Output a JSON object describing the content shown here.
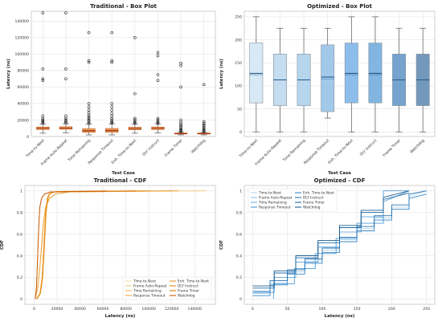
{
  "chart_data": [
    {
      "type": "box",
      "title": "Traditional - Box Plot",
      "xlabel": "Test Case",
      "ylabel": "Latency (ns)",
      "ylim": [
        0,
        152000
      ],
      "yticks": [
        0,
        20000,
        40000,
        60000,
        80000,
        100000,
        120000,
        140000
      ],
      "grid": true,
      "categories": [
        "Time-to-Next",
        "Frame Auto-Repeat",
        "Time Remaining",
        "Response Timeout",
        "Enh. Time-to-Next",
        "DLY Instruct",
        "Frame Timer",
        "Watchdog"
      ],
      "boxes": [
        {
          "whisker_low": 4000,
          "q1": 8500,
          "median": 10000,
          "mean": 10000,
          "q3": 11500,
          "whisker_high": 15000,
          "outliers": [
            150000,
            82000,
            70000,
            68000,
            25000,
            22000,
            20000,
            19000,
            18000,
            17000,
            16500
          ]
        },
        {
          "whisker_low": 4500,
          "q1": 8800,
          "median": 10200,
          "mean": 10200,
          "q3": 11800,
          "whisker_high": 15500,
          "outliers": [
            150000,
            82000,
            70000,
            25000,
            22000,
            20000,
            18500,
            17000,
            16500
          ]
        },
        {
          "whisker_low": 2000,
          "q1": 5000,
          "median": 6800,
          "mean": 7500,
          "q3": 9500,
          "whisker_high": 15000,
          "outliers": [
            126000,
            92000,
            90000,
            40000,
            36000,
            32000,
            29000,
            26000,
            24000,
            22000,
            20000,
            18500,
            17000,
            16000
          ]
        },
        {
          "whisker_low": 2000,
          "q1": 5200,
          "median": 7000,
          "mean": 7800,
          "q3": 9800,
          "whisker_high": 15500,
          "outliers": [
            126000,
            92000,
            90000,
            40000,
            36000,
            32000,
            28000,
            25000,
            22000,
            20000,
            18000,
            17000,
            16200
          ]
        },
        {
          "whisker_low": 4000,
          "q1": 8200,
          "median": 9800,
          "mean": 9800,
          "q3": 11200,
          "whisker_high": 15000,
          "outliers": [
            120000,
            52000,
            22000,
            20000,
            18000,
            17000,
            16000
          ]
        },
        {
          "whisker_low": 4500,
          "q1": 8500,
          "median": 10000,
          "mean": 10000,
          "q3": 11500,
          "whisker_high": 15500,
          "outliers": [
            102000,
            98000,
            75000,
            68000,
            22000,
            20000,
            18000,
            17000,
            16000
          ]
        },
        {
          "whisker_low": 2000,
          "q1": 3000,
          "median": 3500,
          "mean": 3600,
          "q3": 4200,
          "whisker_high": 5500,
          "outliers": [
            89000,
            86000,
            60000,
            20000,
            17500,
            15000,
            13500,
            12000,
            10500,
            9000,
            8000,
            7200,
            6500,
            6000
          ]
        },
        {
          "whisker_low": 2000,
          "q1": 3000,
          "median": 3500,
          "mean": 3600,
          "q3": 4200,
          "whisker_high": 5500,
          "outliers": [
            63000,
            18000,
            16000,
            14000,
            12500,
            11000,
            9500,
            8500,
            7500,
            6800,
            6200,
            5800
          ]
        }
      ]
    },
    {
      "type": "box",
      "title": "Optimized - Box Plot",
      "xlabel": "Test Case",
      "ylabel": "Latency (ns)",
      "ylim": [
        -10,
        262
      ],
      "yticks": [
        0,
        50,
        100,
        150,
        200,
        250
      ],
      "grid": true,
      "categories": [
        "Time-to-Next",
        "Frame Auto-Repeat",
        "Time Remaining",
        "Response Timeout",
        "Enh. Time-to-Next",
        "DLY Instruct",
        "Frame Timer",
        "Watchdog"
      ],
      "colors": [
        "#d6e8f6",
        "#c2dcf1",
        "#b3d4ee",
        "#9fc7e9",
        "#87baea",
        "#7cb2e0",
        "#6e9fcc",
        "#6c93b8"
      ],
      "boxes": [
        {
          "whisker_low": 0,
          "q1": 63,
          "median": 127,
          "mean": 124,
          "q3": 193,
          "whisker_high": 250
        },
        {
          "whisker_low": 0,
          "q1": 57,
          "median": 113,
          "mean": 113,
          "q3": 169,
          "whisker_high": 225
        },
        {
          "whisker_low": 0,
          "q1": 57,
          "median": 113,
          "mean": 113,
          "q3": 169,
          "whisker_high": 225
        },
        {
          "whisker_low": 30,
          "q1": 44,
          "median": 119,
          "mean": 115,
          "q3": 189,
          "whisker_high": 225
        },
        {
          "whisker_low": 0,
          "q1": 63,
          "median": 127,
          "mean": 124,
          "q3": 193,
          "whisker_high": 250
        },
        {
          "whisker_low": 0,
          "q1": 63,
          "median": 127,
          "mean": 124,
          "q3": 193,
          "whisker_high": 250
        },
        {
          "whisker_low": 0,
          "q1": 57,
          "median": 113,
          "mean": 113,
          "q3": 169,
          "whisker_high": 225
        },
        {
          "whisker_low": 0,
          "q1": 57,
          "median": 113,
          "mean": 113,
          "q3": 169,
          "whisker_high": 225
        }
      ]
    },
    {
      "type": "line",
      "title": "Traditional - CDF",
      "xlabel": "Latency (ns)",
      "ylabel": "CDF",
      "xlim": [
        -8000,
        158000
      ],
      "ylim": [
        -0.05,
        1.05
      ],
      "xticks": [
        0,
        20000,
        40000,
        60000,
        80000,
        100000,
        120000,
        140000
      ],
      "yticks": [
        0.0,
        0.2,
        0.4,
        0.6,
        0.8,
        1.0
      ],
      "grid": true,
      "legend_position": "bottom-right",
      "series": [
        {
          "name": "Time-to-Next",
          "color": "#f5d9a6",
          "x": [
            2000,
            5000,
            7000,
            8500,
            10000,
            11500,
            13000,
            15000,
            20000,
            40000,
            150000
          ],
          "y": [
            0.0,
            0.05,
            0.2,
            0.5,
            0.8,
            0.93,
            0.97,
            0.985,
            0.99,
            0.995,
            1.0
          ]
        },
        {
          "name": "Frame Auto-Repeat",
          "color": "#f2cb84",
          "x": [
            2500,
            5500,
            7500,
            9000,
            10500,
            12000,
            13500,
            16000,
            21000,
            45000,
            150000
          ],
          "y": [
            0.0,
            0.05,
            0.2,
            0.5,
            0.8,
            0.93,
            0.97,
            0.985,
            0.99,
            0.995,
            1.0
          ]
        },
        {
          "name": "Time Remaining",
          "color": "#f0b860",
          "x": [
            1000,
            3000,
            5000,
            6500,
            8000,
            10000,
            13000,
            18000,
            30000,
            126000
          ],
          "y": [
            0.0,
            0.1,
            0.3,
            0.5,
            0.7,
            0.85,
            0.93,
            0.97,
            0.99,
            1.0
          ]
        },
        {
          "name": "Response Timeout",
          "color": "#eda640",
          "x": [
            1000,
            3200,
            5200,
            6800,
            8200,
            10200,
            13500,
            18500,
            31000,
            126000
          ],
          "y": [
            0.0,
            0.1,
            0.3,
            0.5,
            0.7,
            0.85,
            0.93,
            0.97,
            0.99,
            1.0
          ]
        },
        {
          "name": "Enh. Time-to-Next",
          "color": "#e99a28",
          "x": [
            2000,
            5000,
            7000,
            8500,
            10000,
            11500,
            13000,
            15000,
            20000,
            120000
          ],
          "y": [
            0.0,
            0.05,
            0.2,
            0.5,
            0.8,
            0.93,
            0.97,
            0.985,
            0.995,
            1.0
          ]
        },
        {
          "name": "DLY Instruct",
          "color": "#e28a10",
          "x": [
            2500,
            5500,
            7500,
            9000,
            10500,
            12000,
            13500,
            16000,
            21000,
            102000
          ],
          "y": [
            0.0,
            0.05,
            0.2,
            0.5,
            0.8,
            0.93,
            0.97,
            0.985,
            0.995,
            1.0
          ]
        },
        {
          "name": "Frame Timer",
          "color": "#d97308",
          "x": [
            1000,
            2000,
            2800,
            3500,
            4200,
            5000,
            6500,
            9000,
            14000,
            89000
          ],
          "y": [
            0.0,
            0.1,
            0.3,
            0.5,
            0.7,
            0.85,
            0.93,
            0.97,
            0.99,
            1.0
          ]
        },
        {
          "name": "Watchdog",
          "color": "#c85a08",
          "x": [
            1000,
            2000,
            2800,
            3500,
            4200,
            5000,
            6500,
            9000,
            14000,
            63000
          ],
          "y": [
            0.0,
            0.1,
            0.3,
            0.5,
            0.7,
            0.85,
            0.93,
            0.97,
            0.99,
            1.0
          ]
        }
      ]
    },
    {
      "type": "line",
      "title": "Optimized - CDF",
      "xlabel": "Latency (ns)",
      "ylabel": "CDF",
      "xlim": [
        -12,
        262
      ],
      "ylim": [
        -0.05,
        1.05
      ],
      "xticks": [
        0,
        50,
        100,
        150,
        200,
        250
      ],
      "yticks": [
        0.0,
        0.2,
        0.4,
        0.6,
        0.8,
        1.0
      ],
      "grid": true,
      "legend_position": "top-left",
      "series": [
        {
          "name": "Time-to-Next",
          "color": "#b0d4ee",
          "x": [
            0,
            25,
            25,
            50,
            50,
            75,
            75,
            100,
            100,
            125,
            125,
            150,
            150,
            175,
            175,
            200,
            200,
            225,
            225,
            250
          ],
          "y": [
            0.05,
            0.05,
            0.15,
            0.15,
            0.25,
            0.25,
            0.35,
            0.35,
            0.45,
            0.45,
            0.55,
            0.55,
            0.65,
            0.65,
            0.75,
            0.75,
            0.85,
            0.85,
            0.95,
            1.0
          ]
        },
        {
          "name": "Frame Auto-Repeat",
          "color": "#90c0e6",
          "x": [
            0,
            31,
            31,
            62,
            62,
            94,
            94,
            125,
            125,
            156,
            156,
            188,
            188,
            225
          ],
          "y": [
            0.06,
            0.06,
            0.2,
            0.2,
            0.34,
            0.34,
            0.48,
            0.48,
            0.62,
            0.62,
            0.76,
            0.76,
            0.9,
            1.0
          ]
        },
        {
          "name": "Time Remaining",
          "color": "#72aede",
          "x": [
            0,
            31,
            31,
            62,
            62,
            94,
            94,
            125,
            125,
            156,
            156,
            188,
            188,
            225
          ],
          "y": [
            0.06,
            0.06,
            0.2,
            0.2,
            0.34,
            0.34,
            0.48,
            0.48,
            0.62,
            0.62,
            0.76,
            0.76,
            0.9,
            1.0
          ]
        },
        {
          "name": "Response Timeout",
          "color": "#4f9ad6",
          "x": [
            30,
            30,
            60,
            60,
            90,
            90,
            120,
            120,
            150,
            150,
            188,
            188,
            225
          ],
          "y": [
            0.0,
            0.14,
            0.14,
            0.28,
            0.28,
            0.42,
            0.42,
            0.56,
            0.56,
            0.7,
            0.7,
            1.0,
            1.0
          ]
        },
        {
          "name": "Enh. Time-to-Next",
          "color": "#3888c8",
          "x": [
            0,
            25,
            25,
            50,
            50,
            75,
            75,
            100,
            100,
            125,
            125,
            150,
            150,
            175,
            175,
            200,
            200,
            225,
            225,
            250
          ],
          "y": [
            0.03,
            0.03,
            0.13,
            0.13,
            0.23,
            0.23,
            0.33,
            0.33,
            0.43,
            0.43,
            0.53,
            0.53,
            0.63,
            0.63,
            0.73,
            0.73,
            0.83,
            0.83,
            0.93,
            0.97
          ]
        },
        {
          "name": "DLY Instruct",
          "color": "#2a76b4",
          "x": [
            0,
            25,
            25,
            50,
            50,
            75,
            75,
            100,
            100,
            125,
            125,
            150,
            150,
            175,
            175,
            200,
            200,
            225,
            225,
            250
          ],
          "y": [
            0.07,
            0.07,
            0.17,
            0.17,
            0.27,
            0.27,
            0.37,
            0.37,
            0.47,
            0.47,
            0.57,
            0.57,
            0.67,
            0.67,
            0.77,
            0.77,
            0.87,
            0.87,
            0.97,
            1.0
          ]
        },
        {
          "name": "Frame Timer",
          "color": "#1f6aa4",
          "x": [
            0,
            31,
            31,
            62,
            62,
            94,
            94,
            125,
            125,
            156,
            156,
            188,
            188,
            225
          ],
          "y": [
            0.1,
            0.1,
            0.24,
            0.24,
            0.38,
            0.38,
            0.52,
            0.52,
            0.66,
            0.66,
            0.8,
            0.8,
            0.92,
            0.98
          ]
        },
        {
          "name": "Watchdog",
          "color": "#1a5e90",
          "x": [
            0,
            31,
            31,
            62,
            62,
            94,
            94,
            125,
            125,
            156,
            156,
            188,
            188,
            225
          ],
          "y": [
            0.12,
            0.12,
            0.26,
            0.26,
            0.4,
            0.4,
            0.54,
            0.54,
            0.68,
            0.68,
            0.82,
            0.82,
            0.94,
            1.0
          ]
        }
      ]
    }
  ]
}
